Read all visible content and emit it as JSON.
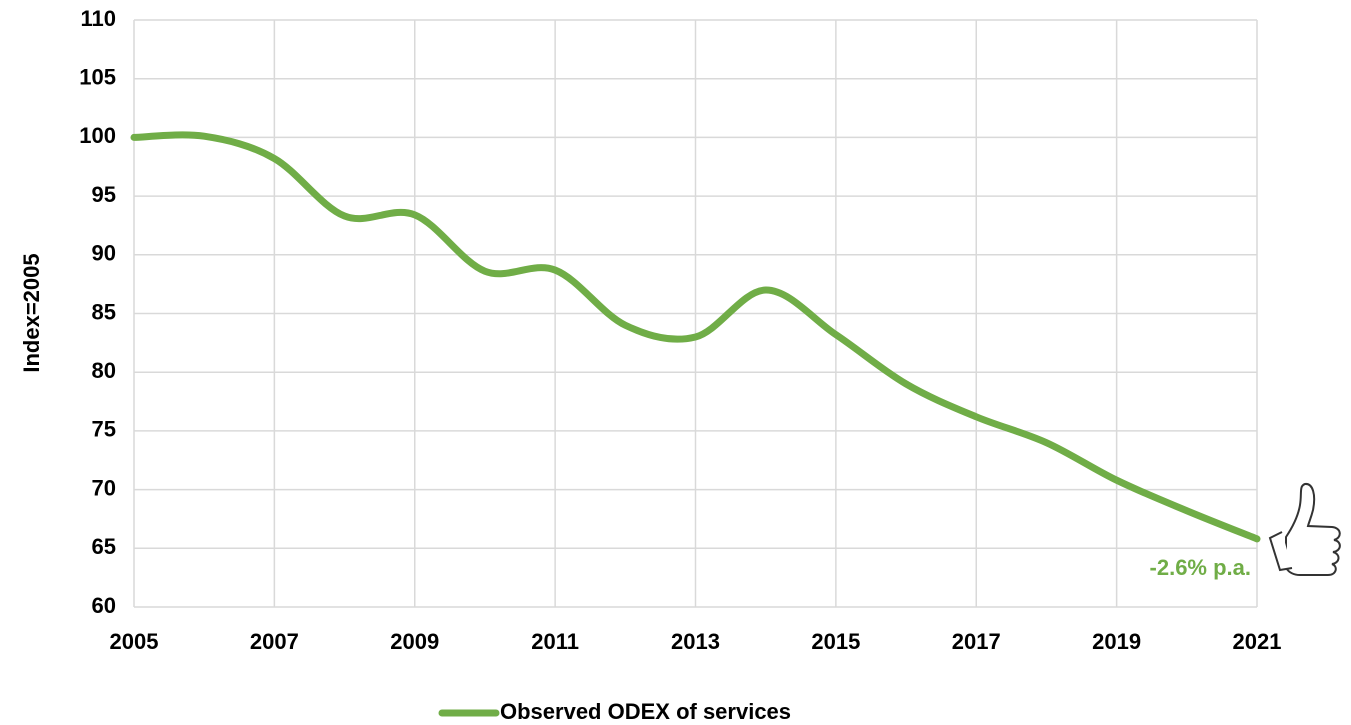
{
  "chart_data": {
    "type": "line",
    "ylabel": "Index=2005",
    "x": [
      2005,
      2006,
      2007,
      2008,
      2009,
      2010,
      2011,
      2012,
      2013,
      2014,
      2015,
      2016,
      2017,
      2018,
      2019,
      2020,
      2021
    ],
    "series": [
      {
        "name": "Observed ODEX of services",
        "color": "#70ad47",
        "values": [
          100,
          100.1,
          98.2,
          93.3,
          93.4,
          88.6,
          88.7,
          84.0,
          83.0,
          87.0,
          83.2,
          79.0,
          76.2,
          74.0,
          70.8,
          68.2,
          65.8
        ]
      }
    ],
    "annotation": "-2.6% p.a.",
    "xlim": [
      2005,
      2021
    ],
    "xticks": [
      2005,
      2007,
      2009,
      2011,
      2013,
      2015,
      2017,
      2019,
      2021
    ],
    "ylim": [
      60,
      110
    ],
    "yticks": [
      60,
      65,
      70,
      75,
      80,
      85,
      90,
      95,
      100,
      105,
      110
    ],
    "grid": true,
    "legend": "bottom"
  }
}
